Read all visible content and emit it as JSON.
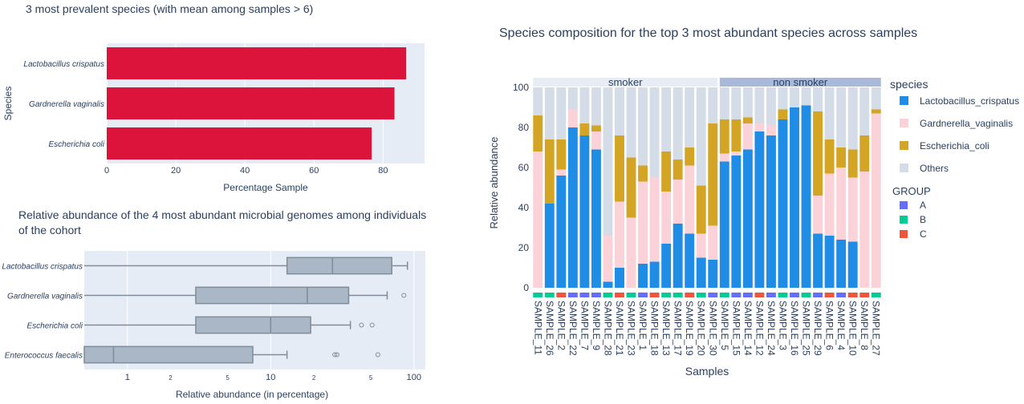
{
  "chart_data": [
    {
      "type": "bar",
      "orientation": "horizontal",
      "title": "3 most prevalent species (with mean among samples > 6)",
      "xlabel": "Percentage Sample",
      "ylabel": "Species",
      "xlim": [
        0,
        92
      ],
      "xticks": [
        "0",
        "20",
        "40",
        "60",
        "80"
      ],
      "categories": [
        "Lactobacillus crispatus",
        "Gardnerella vaginalis",
        "Escherichia coli"
      ],
      "values": [
        86.7,
        83.3,
        76.7
      ],
      "bar_color": "#dc143c",
      "grid": true
    },
    {
      "type": "box",
      "title": "Relative abundance of the 4 most abundant microbial genomes among individuals of the cohort",
      "xlabel": "Relative abundance (in percentage)",
      "xscale": "log",
      "xlim": [
        0.5,
        120
      ],
      "xticks": [
        "1",
        "2",
        "5",
        "10",
        "2",
        "5",
        "100"
      ],
      "categories": [
        "Lactobacillus crispatus",
        "Gardnerella vaginalis",
        "Escherichia coli",
        "Enterococcus faecalis"
      ],
      "boxes": [
        {
          "name": "Lactobacillus crispatus",
          "whisker_low": 0.0,
          "q1": 13,
          "median": 27,
          "q3": 70,
          "whisker_high": 90,
          "outliers": []
        },
        {
          "name": "Gardnerella vaginalis",
          "whisker_low": 0.0,
          "q1": 3,
          "median": 18,
          "q3": 35,
          "whisker_high": 65,
          "outliers": [
            85
          ]
        },
        {
          "name": "Escherichia coli",
          "whisker_low": 0.0,
          "q1": 3,
          "median": 10,
          "q3": 19,
          "whisker_high": 36,
          "outliers": [
            43,
            51
          ]
        },
        {
          "name": "Enterococcus faecalis",
          "whisker_low": 0.0,
          "q1": 0.5,
          "median": 0.8,
          "q3": 7.5,
          "whisker_high": 13,
          "outliers": [
            28,
            29,
            56
          ]
        }
      ],
      "box_color": "#a9b7c6"
    },
    {
      "type": "bar",
      "stacked": true,
      "title": "Species composition for the top 3 most abundant species across samples",
      "xlabel": "Samples",
      "ylabel": "Relative abundance",
      "ylim": [
        0,
        100
      ],
      "yticks": [
        "0",
        "20",
        "40",
        "60",
        "80",
        "100"
      ],
      "groups": [
        {
          "label": "smoker",
          "count": 16
        },
        {
          "label": "non smoker",
          "count": 14
        }
      ],
      "categories": [
        "SAMPLE_11",
        "SAMPLE_26",
        "SAMPLE_2",
        "SAMPLE_22",
        "SAMPLE_7",
        "SAMPLE_9",
        "SAMPLE_28",
        "SAMPLE_21",
        "SAMPLE_23",
        "SAMPLE_1",
        "SAMPLE_18",
        "SAMPLE_13",
        "SAMPLE_17",
        "SAMPLE_19",
        "SAMPLE_20",
        "SAMPLE_30",
        "SAMPLE_5",
        "SAMPLE_15",
        "SAMPLE_14",
        "SAMPLE_12",
        "SAMPLE_24",
        "SAMPLE_3",
        "SAMPLE_16",
        "SAMPLE_25",
        "SAMPLE_29",
        "SAMPLE_6",
        "SAMPLE_4",
        "SAMPLE_10",
        "SAMPLE_8",
        "SAMPLE_27"
      ],
      "series": [
        {
          "name": "Lactobacillus_crispatus",
          "color": "#1f8ce6",
          "values": [
            0,
            42,
            56,
            80,
            76,
            69,
            3,
            10,
            0,
            12,
            13,
            22,
            32,
            27,
            15,
            14,
            63,
            66,
            69,
            78,
            76,
            84,
            90,
            91,
            27,
            26,
            24,
            23,
            0,
            0
          ]
        },
        {
          "name": "Gardnerella_vaginalis",
          "color": "#fbd2d8",
          "values": [
            68,
            0,
            3,
            9,
            0,
            9,
            23,
            33,
            35,
            41,
            42,
            26,
            22,
            34,
            12,
            17,
            4,
            2,
            13,
            4,
            5,
            0,
            0,
            0,
            19,
            31,
            36,
            32,
            58,
            87
          ]
        },
        {
          "name": "Escherichia_coli",
          "color": "#d4a524",
          "values": [
            18,
            32,
            15,
            0,
            6,
            3,
            0,
            33,
            30,
            8,
            0,
            20,
            10,
            9,
            24,
            51,
            17,
            16,
            3,
            0,
            0,
            5,
            0,
            0,
            42,
            17,
            10,
            14,
            18,
            2
          ]
        },
        {
          "name": "Others",
          "color": "#d4dce8",
          "values": [
            14,
            26,
            26,
            11,
            18,
            19,
            74,
            24,
            35,
            39,
            45,
            32,
            36,
            30,
            49,
            18,
            16,
            16,
            15,
            18,
            19,
            11,
            10,
            9,
            12,
            26,
            30,
            31,
            24,
            11
          ]
        }
      ],
      "group_row": {
        "title": "GROUP",
        "levels": [
          {
            "name": "A",
            "color": "#636efa"
          },
          {
            "name": "B",
            "color": "#00cc96"
          },
          {
            "name": "C",
            "color": "#ef553b"
          }
        ],
        "values": [
          "B",
          "B",
          "C",
          "A",
          "A",
          "A",
          "B",
          "C",
          "B",
          "A",
          "C",
          "B",
          "B",
          "C",
          "B",
          "A",
          "B",
          "A",
          "A",
          "C",
          "A",
          "B",
          "A",
          "B",
          "A",
          "C",
          "A",
          "C",
          "C",
          "B"
        ]
      },
      "legend_title": "species",
      "legend_position": "right"
    }
  ]
}
